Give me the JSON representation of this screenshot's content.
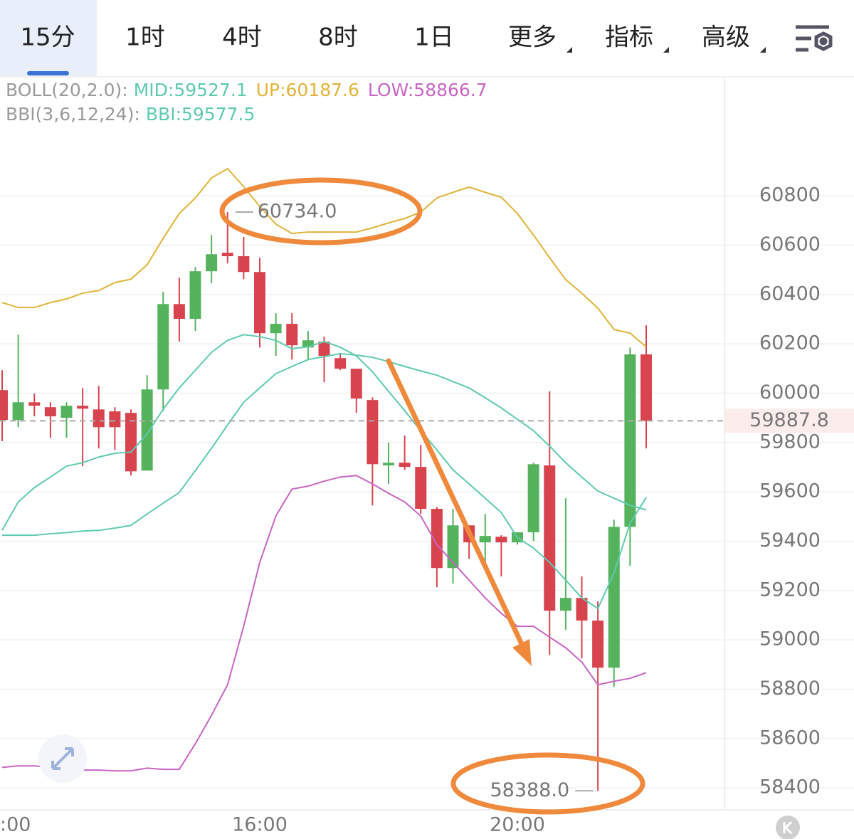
{
  "tabs": [
    "15分",
    "1时",
    "4时",
    "8时",
    "1日",
    "更多",
    "指标",
    "高级"
  ],
  "active_tab": "15分",
  "chart_data": {
    "type": "candlestick",
    "categories": [
      ":00",
      null,
      null,
      null,
      null,
      null,
      null,
      null,
      null,
      null,
      null,
      null,
      null,
      null,
      null,
      null,
      "16:00",
      null,
      null,
      null,
      null,
      null,
      null,
      null,
      null,
      null,
      null,
      null,
      null,
      null,
      null,
      null,
      "20:00",
      null,
      null,
      null,
      null,
      null,
      null,
      null,
      null
    ],
    "open": [
      60012,
      59891,
      59963,
      59943,
      59900,
      59949,
      59934,
      59926,
      59920,
      59686,
      60015,
      60361,
      60301,
      60494,
      60569,
      60555,
      60491,
      60243,
      60281,
      60185,
      60209,
      60142,
      60099,
      59972,
      59707,
      59718,
      59701,
      59531,
      59291,
      59464,
      59395,
      59418,
      59395,
      59436,
      59707,
      59118,
      59170,
      59078,
      58887,
      59458,
      60157
    ],
    "high": [
      60093,
      60237,
      59998,
      59963,
      59963,
      60021,
      60029,
      59943,
      59934,
      60073,
      60411,
      60468,
      60511,
      60641,
      60734,
      60633,
      60549,
      60324,
      60324,
      60252,
      60229,
      60157,
      60099,
      59983,
      59799,
      59828,
      59790,
      59539,
      59531,
      59464,
      59510,
      59424,
      59436,
      59718,
      60007,
      59574,
      59257,
      59156,
      59487,
      60185,
      60275
    ],
    "low": [
      59805,
      59862,
      59906,
      59819,
      59819,
      59704,
      59776,
      59770,
      59666,
      59686,
      59926,
      60209,
      60252,
      60445,
      60526,
      60462,
      60185,
      60151,
      60136,
      60136,
      60044,
      60093,
      59920,
      59545,
      59632,
      59689,
      59511,
      59213,
      59228,
      59329,
      59286,
      59257,
      59386,
      59401,
      58939,
      59040,
      58925,
      58388,
      58809,
      59300,
      59776
    ],
    "close": [
      59891,
      59963,
      59949,
      59906,
      59949,
      59937,
      59862,
      59862,
      59683,
      60015,
      60361,
      60301,
      60494,
      60563,
      60555,
      60491,
      60243,
      60281,
      60194,
      60214,
      60151,
      60099,
      59978,
      59712,
      59718,
      59701,
      59531,
      59291,
      59464,
      59395,
      59421,
      59395,
      59436,
      59712,
      59118,
      59170,
      59078,
      58887,
      59458,
      60157,
      59887.8
    ],
    "up_color": "#55b35e",
    "down_color": "#d8444d",
    "indicators": [
      {
        "label": "BOLL(20,2.0):",
        "lines": [
          {
            "name": "MID:59527.1",
            "color": "#5ecab0",
            "values": [
              59424,
              59424,
              59424,
              59430,
              59435,
              59441,
              59444,
              59453,
              59464,
              59510,
              59554,
              59597,
              59686,
              59776,
              59871,
              59963,
              60021,
              60079,
              60108,
              60136,
              60148,
              60160,
              60154,
              60145,
              60128,
              60108,
              60090,
              60073,
              60047,
              60021,
              59981,
              59940,
              59894,
              59848,
              59785,
              59718,
              59660,
              59603,
              59574,
              59545,
              59527.1
            ]
          },
          {
            "name": "UP:60187.6",
            "color": "#e2b33a",
            "values": [
              60367,
              60347,
              60347,
              60367,
              60382,
              60405,
              60416,
              60448,
              60462,
              60520,
              60627,
              60728,
              60791,
              60872,
              60910,
              60837,
              60757,
              60685,
              60647,
              60653,
              60653,
              60653,
              60653,
              60670,
              60690,
              60708,
              60734,
              60791,
              60814,
              60835,
              60814,
              60794,
              60728,
              60641,
              60549,
              60460,
              60405,
              60344,
              60258,
              60243,
              60187.6
            ]
          },
          {
            "name": "LOW:58866.7",
            "color": "#c865c4",
            "values": [
              58483,
              58489,
              58489,
              58483,
              58478,
              58472,
              58472,
              58469,
              58469,
              58480,
              58475,
              58475,
              58579,
              58694,
              58818,
              59055,
              59314,
              59502,
              59611,
              59623,
              59643,
              59660,
              59666,
              59632,
              59594,
              59559,
              59502,
              59386,
              59314,
              59242,
              59170,
              59107,
              59055,
              59055,
              59011,
              58968,
              58910,
              58818,
              58832,
              58844,
              58866.7
            ]
          }
        ]
      },
      {
        "label": "BBI(3,6,12,24):",
        "lines": [
          {
            "name": "BBI:59577.5",
            "color": "#5ecab0",
            "values": [
              59444,
              59559,
              59617,
              59660,
              59704,
              59718,
              59741,
              59756,
              59761,
              59834,
              59935,
              60021,
              60093,
              60165,
              60214,
              60237,
              60229,
              60214,
              60180,
              60188,
              60209,
              60186,
              60151,
              60087,
              60007,
              59929,
              59848,
              59770,
              59689,
              59632,
              59574,
              59516,
              59415,
              59372,
              59314,
              59242,
              59170,
              59127,
              59271,
              59473,
              59577.5
            ]
          }
        ]
      }
    ],
    "label_color": "#9a9a9a",
    "ylim": [
      58311,
      61282
    ],
    "yticks": [
      58400,
      58600,
      58800,
      59000,
      59200,
      59400,
      59600,
      59800,
      60000,
      60200,
      60400,
      60600,
      60800
    ],
    "grid": true,
    "last_price": 59887.8,
    "high_label": {
      "value": 60734,
      "label": "60734.0"
    },
    "low_label": {
      "value": 58388,
      "label": "58388.0"
    }
  }
}
